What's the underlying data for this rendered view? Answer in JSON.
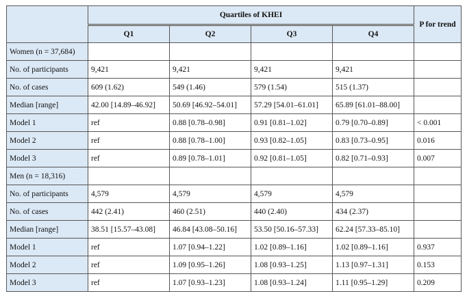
{
  "header": {
    "group": "Quartiles of KHEI",
    "quartiles": [
      "Q1",
      "Q2",
      "Q3",
      "Q4"
    ],
    "p": "P for trend"
  },
  "rows": [
    {
      "label": "Women (n = 37,684)"
    },
    {
      "label": "No. of participants",
      "cells": [
        "9,421",
        "9,421",
        "9,421",
        "9,421"
      ]
    },
    {
      "label": "No. of cases",
      "cells": [
        "609 (1.62)",
        "549 (1.46)",
        "579 (1.54)",
        "515 (1.37)"
      ]
    },
    {
      "label": "Median [range]",
      "cells": [
        "42.00 [14.89–46.92]",
        "50.69 [46.92–54.01]",
        "57.29 [54.01–61.01]",
        "65.89 [61.01–88.00]"
      ]
    },
    {
      "label": "Model 1",
      "cells": [
        "ref",
        "0.88 [0.78–0.98]",
        "0.91 [0.81–1.02]",
        "0.79 [0.70–0.89]"
      ],
      "p": "< 0.001"
    },
    {
      "label": "Model 2",
      "cells": [
        "ref",
        "0.88 [0.78–1.00]",
        "0.93 [0.82–1.05]",
        "0.83 [0.73–0.95]"
      ],
      "p": "0.016"
    },
    {
      "label": "Model 3",
      "cells": [
        "ref",
        "0.89 [0.78–1.01]",
        "0.92 [0.81–1.05]",
        "0.82 [0.71–0.93]"
      ],
      "p": "0.007"
    },
    {
      "label": "Men (n = 18,316)"
    },
    {
      "label": "No. of participants",
      "cells": [
        "4,579",
        "4,579",
        "4,579",
        "4,579"
      ]
    },
    {
      "label": "No. of cases",
      "cells": [
        "442 (2.41)",
        "460 (2.51)",
        "440 (2.40)",
        "434 (2.37)"
      ]
    },
    {
      "label": "Median [range]",
      "cells": [
        "38.51 [15.57–43.08]",
        "46.84 [43.08–50.16]",
        "53.50 [50.16–57.33]",
        "62.24 [57.33–85.10]"
      ]
    },
    {
      "label": "Model 1",
      "cells": [
        "ref",
        "1.07 [0.94–1.22]",
        "1.02 [0.89–1.16]",
        "1.02 [0.89–1.16]"
      ],
      "p": "0.937"
    },
    {
      "label": "Model 2",
      "cells": [
        "ref",
        "1.09 [0.95–1.26]",
        "1.08 [0.93–1.25]",
        "1.13 [0.97–1.31]"
      ],
      "p": "0.153"
    },
    {
      "label": "Model 3",
      "cells": [
        "ref",
        "1.07 [0.93–1.23]",
        "1.08 [0.93–1.24]",
        "1.11 [0.95–1.29]"
      ],
      "p": "0.209"
    }
  ]
}
